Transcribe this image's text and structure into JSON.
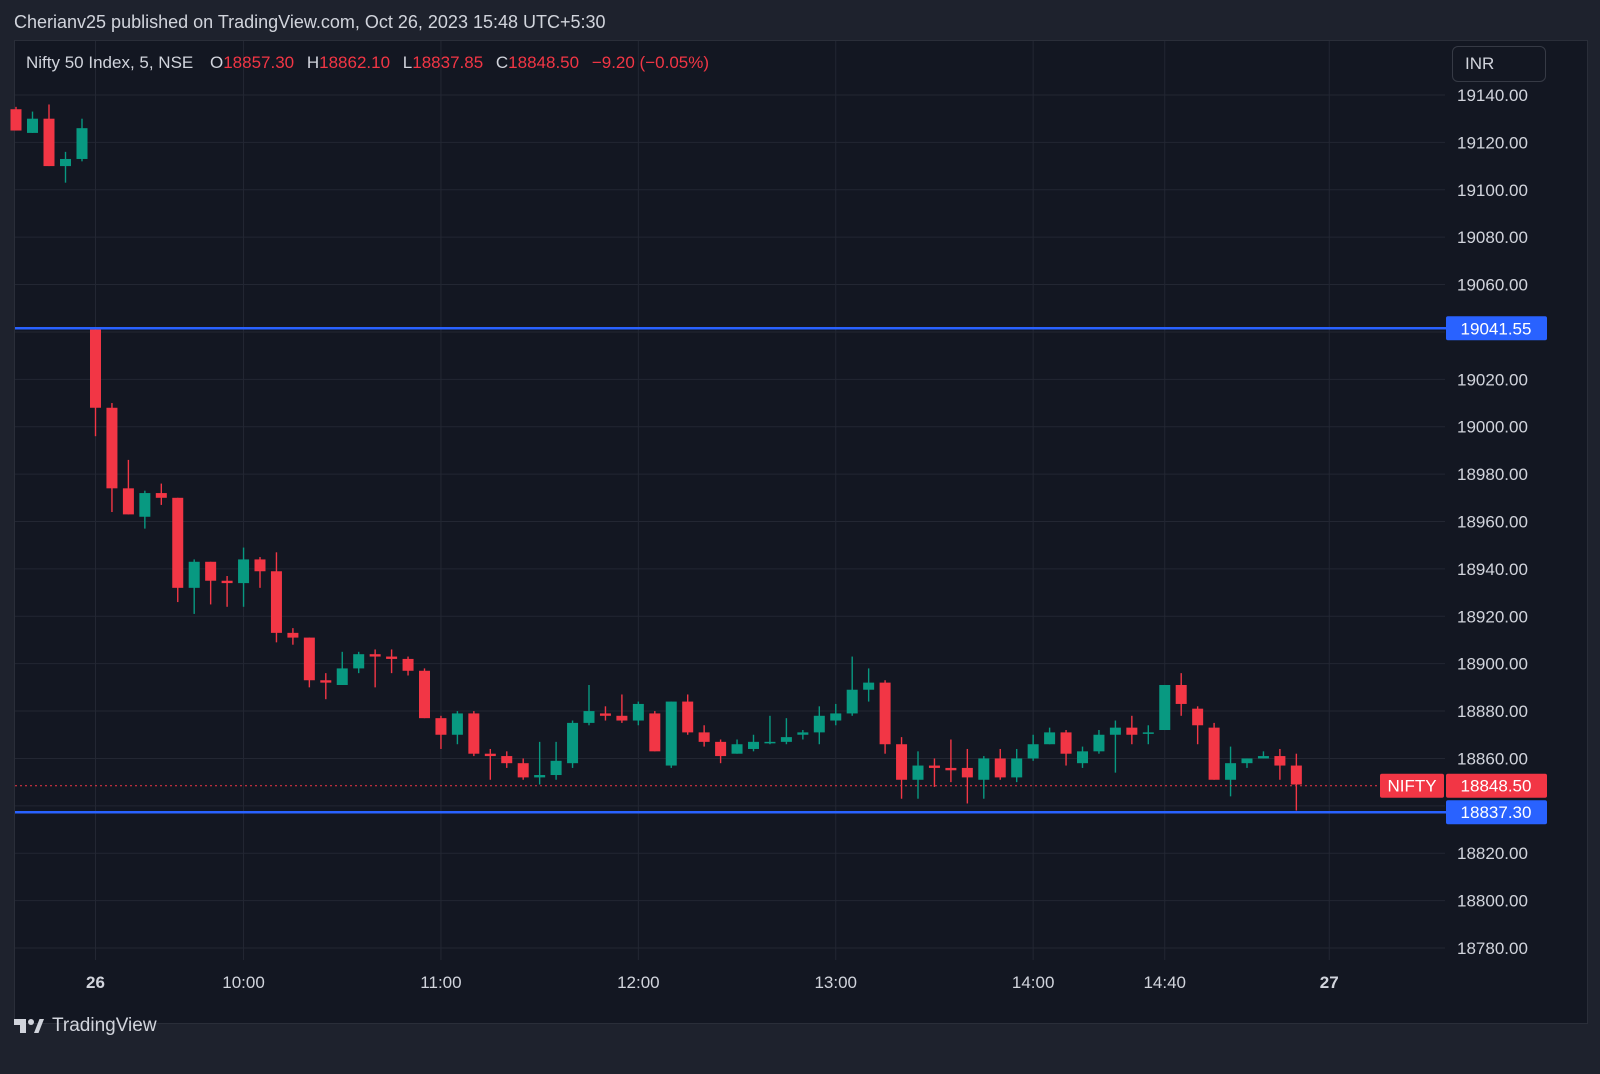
{
  "header": {
    "published_text": "Cherianv25 published on TradingView.com, Oct 26, 2023 15:48 UTC+5:30"
  },
  "legend": {
    "symbol": "Nifty 50 Index, 5, NSE",
    "o_label": "O",
    "o_value": "18857.30",
    "h_label": "H",
    "h_value": "18862.10",
    "l_label": "L",
    "l_value": "18837.85",
    "c_label": "C",
    "c_value": "18848.50",
    "change": "−9.20 (−0.05%)"
  },
  "currency_button": {
    "label": "INR"
  },
  "colors": {
    "up": "#089981",
    "down": "#f23645",
    "hline": "#2962ff",
    "background": "#131722",
    "grid": "#232733"
  },
  "footer": {
    "brand": "TradingView",
    "icon": "tradingview-logo-icon"
  },
  "chart_data": {
    "type": "candlestick",
    "ylim": [
      18770,
      19150
    ],
    "y_ticks": [
      19140,
      19120,
      19100,
      19080,
      19060,
      19020,
      19000,
      18980,
      18960,
      18940,
      18920,
      18900,
      18880,
      18860,
      18820,
      18800,
      18780
    ],
    "y_tick_labels": [
      "19140.00",
      "19120.00",
      "19100.00",
      "19080.00",
      "19060.00",
      "19020.00",
      "19000.00",
      "18980.00",
      "18960.00",
      "18940.00",
      "18920.00",
      "18900.00",
      "18880.00",
      "18860.00",
      "18820.00",
      "18800.00",
      "18780.00"
    ],
    "x_labels": [
      {
        "label": "26",
        "bar": 0,
        "bold": true
      },
      {
        "label": "10:00",
        "bar": 9,
        "bold": false
      },
      {
        "label": "11:00",
        "bar": 21,
        "bold": false
      },
      {
        "label": "12:00",
        "bar": 33,
        "bold": false
      },
      {
        "label": "13:00",
        "bar": 45,
        "bold": false
      },
      {
        "label": "14:00",
        "bar": 57,
        "bold": false
      },
      {
        "label": "14:40",
        "bar": 65,
        "bold": false
      },
      {
        "label": "27",
        "bar": 75,
        "bold": true
      }
    ],
    "previous_day_candles": [
      {
        "o": 19134,
        "h": 19135,
        "l": 19125,
        "c": 19125
      },
      {
        "o": 19124,
        "h": 19133,
        "l": 19124,
        "c": 19130
      },
      {
        "o": 19130,
        "h": 19136,
        "l": 19110,
        "c": 19110
      },
      {
        "o": 19110,
        "h": 19116,
        "l": 19103,
        "c": 19113
      },
      {
        "o": 19113,
        "h": 19130,
        "l": 19112,
        "c": 19126
      }
    ],
    "candles": [
      {
        "o": 19041,
        "h": 19041,
        "l": 18996,
        "c": 19008
      },
      {
        "o": 19008,
        "h": 19010,
        "l": 18964,
        "c": 18974
      },
      {
        "o": 18974,
        "h": 18986,
        "l": 18963,
        "c": 18963
      },
      {
        "o": 18962,
        "h": 18973,
        "l": 18957,
        "c": 18972
      },
      {
        "o": 18972,
        "h": 18976,
        "l": 18967,
        "c": 18970
      },
      {
        "o": 18970,
        "h": 18970,
        "l": 18926,
        "c": 18932
      },
      {
        "o": 18932,
        "h": 18944,
        "l": 18921,
        "c": 18943
      },
      {
        "o": 18943,
        "h": 18943,
        "l": 18925,
        "c": 18935
      },
      {
        "o": 18935,
        "h": 18937,
        "l": 18924,
        "c": 18934
      },
      {
        "o": 18934,
        "h": 18949,
        "l": 18924,
        "c": 18944
      },
      {
        "o": 18944,
        "h": 18945,
        "l": 18932,
        "c": 18939
      },
      {
        "o": 18939,
        "h": 18947,
        "l": 18909,
        "c": 18913
      },
      {
        "o": 18913,
        "h": 18915,
        "l": 18908,
        "c": 18911
      },
      {
        "o": 18911,
        "h": 18911,
        "l": 18890,
        "c": 18893
      },
      {
        "o": 18893,
        "h": 18896,
        "l": 18885,
        "c": 18892
      },
      {
        "o": 18891,
        "h": 18905,
        "l": 18891,
        "c": 18898
      },
      {
        "o": 18898,
        "h": 18905,
        "l": 18896,
        "c": 18904
      },
      {
        "o": 18904,
        "h": 18906,
        "l": 18890,
        "c": 18903
      },
      {
        "o": 18903,
        "h": 18906,
        "l": 18896,
        "c": 18902
      },
      {
        "o": 18902,
        "h": 18903,
        "l": 18895,
        "c": 18897
      },
      {
        "o": 18897,
        "h": 18898,
        "l": 18877,
        "c": 18877
      },
      {
        "o": 18877,
        "h": 18878,
        "l": 18864,
        "c": 18870
      },
      {
        "o": 18870,
        "h": 18880,
        "l": 18866,
        "c": 18879
      },
      {
        "o": 18879,
        "h": 18880,
        "l": 18861,
        "c": 18862
      },
      {
        "o": 18862,
        "h": 18864,
        "l": 18851,
        "c": 18861
      },
      {
        "o": 18861,
        "h": 18863,
        "l": 18856,
        "c": 18858
      },
      {
        "o": 18858,
        "h": 18860,
        "l": 18851,
        "c": 18852
      },
      {
        "o": 18852,
        "h": 18867,
        "l": 18849,
        "c": 18853
      },
      {
        "o": 18853,
        "h": 18867,
        "l": 18851,
        "c": 18859
      },
      {
        "o": 18858,
        "h": 18876,
        "l": 18856,
        "c": 18875
      },
      {
        "o": 18875,
        "h": 18891,
        "l": 18874,
        "c": 18880
      },
      {
        "o": 18879,
        "h": 18882,
        "l": 18876,
        "c": 18878
      },
      {
        "o": 18878,
        "h": 18887,
        "l": 18875,
        "c": 18876
      },
      {
        "o": 18876,
        "h": 18884,
        "l": 18874,
        "c": 18883
      },
      {
        "o": 18879,
        "h": 18880,
        "l": 18863,
        "c": 18863
      },
      {
        "o": 18857,
        "h": 18884,
        "l": 18856,
        "c": 18884
      },
      {
        "o": 18884,
        "h": 18887,
        "l": 18870,
        "c": 18871
      },
      {
        "o": 18871,
        "h": 18874,
        "l": 18865,
        "c": 18867
      },
      {
        "o": 18867,
        "h": 18868,
        "l": 18858,
        "c": 18861
      },
      {
        "o": 18862,
        "h": 18868,
        "l": 18862,
        "c": 18866
      },
      {
        "o": 18864,
        "h": 18870,
        "l": 18863,
        "c": 18867
      },
      {
        "o": 18867,
        "h": 18878,
        "l": 18866,
        "c": 18867
      },
      {
        "o": 18867,
        "h": 18877,
        "l": 18866,
        "c": 18869
      },
      {
        "o": 18870,
        "h": 18872,
        "l": 18868,
        "c": 18871
      },
      {
        "o": 18871,
        "h": 18882,
        "l": 18866,
        "c": 18878
      },
      {
        "o": 18876,
        "h": 18883,
        "l": 18874,
        "c": 18879
      },
      {
        "o": 18879,
        "h": 18903,
        "l": 18878,
        "c": 18889
      },
      {
        "o": 18889,
        "h": 18898,
        "l": 18884,
        "c": 18892
      },
      {
        "o": 18892,
        "h": 18893,
        "l": 18862,
        "c": 18866
      },
      {
        "o": 18866,
        "h": 18869,
        "l": 18843,
        "c": 18851
      },
      {
        "o": 18851,
        "h": 18863,
        "l": 18843,
        "c": 18857
      },
      {
        "o": 18857,
        "h": 18860,
        "l": 18848,
        "c": 18856
      },
      {
        "o": 18856,
        "h": 18868,
        "l": 18850,
        "c": 18855
      },
      {
        "o": 18856,
        "h": 18864,
        "l": 18841,
        "c": 18852
      },
      {
        "o": 18851,
        "h": 18861,
        "l": 18843,
        "c": 18860
      },
      {
        "o": 18860,
        "h": 18864,
        "l": 18851,
        "c": 18852
      },
      {
        "o": 18852,
        "h": 18864,
        "l": 18850,
        "c": 18860
      },
      {
        "o": 18860,
        "h": 18870,
        "l": 18859,
        "c": 18866
      },
      {
        "o": 18866,
        "h": 18873,
        "l": 18866,
        "c": 18871
      },
      {
        "o": 18871,
        "h": 18872,
        "l": 18857,
        "c": 18862
      },
      {
        "o": 18858,
        "h": 18865,
        "l": 18856,
        "c": 18863
      },
      {
        "o": 18863,
        "h": 18872,
        "l": 18862,
        "c": 18870
      },
      {
        "o": 18870,
        "h": 18876,
        "l": 18854,
        "c": 18873
      },
      {
        "o": 18873,
        "h": 18878,
        "l": 18866,
        "c": 18870
      },
      {
        "o": 18871,
        "h": 18874,
        "l": 18866,
        "c": 18871
      },
      {
        "o": 18872,
        "h": 18891,
        "l": 18872,
        "c": 18891
      },
      {
        "o": 18891,
        "h": 18896,
        "l": 18878,
        "c": 18883
      },
      {
        "o": 18881,
        "h": 18882,
        "l": 18866,
        "c": 18874
      },
      {
        "o": 18873,
        "h": 18875,
        "l": 18851,
        "c": 18851
      },
      {
        "o": 18851,
        "h": 18865,
        "l": 18844,
        "c": 18858
      },
      {
        "o": 18858,
        "h": 18860,
        "l": 18856,
        "c": 18860
      },
      {
        "o": 18860,
        "h": 18863,
        "l": 18860,
        "c": 18861
      },
      {
        "o": 18861,
        "h": 18864,
        "l": 18851,
        "c": 18857
      },
      {
        "o": 18857,
        "h": 18862,
        "l": 18838,
        "c": 18849
      }
    ],
    "horizontal_lines": [
      {
        "value": 19041.55,
        "label": "19041.55"
      },
      {
        "value": 18837.3,
        "label": "18837.30"
      }
    ],
    "last_price": {
      "value": 18848.5,
      "label": "18848.50",
      "symbol": "NIFTY"
    }
  }
}
